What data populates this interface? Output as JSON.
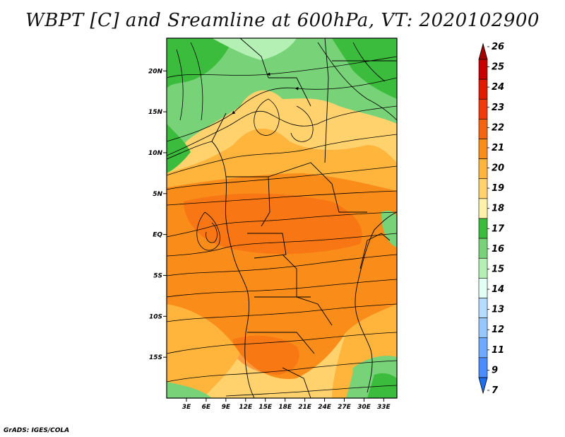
{
  "title": "WBPT [C] and Sreamline at 600hPa, VT: 2020102900",
  "credit": "GrADS: IGES/COLA",
  "map": {
    "variable": "Wet-bulb potential temperature (WBPT) with streamlines",
    "level": "600hPa",
    "lon_range": [
      0,
      35
    ],
    "lat_range": [
      -20,
      24
    ],
    "lat_ticks": [
      {
        "value": 20,
        "label": "20N"
      },
      {
        "value": 15,
        "label": "15N"
      },
      {
        "value": 10,
        "label": "10N"
      },
      {
        "value": 5,
        "label": "5N"
      },
      {
        "value": 0,
        "label": "EQ"
      },
      {
        "value": -5,
        "label": "5S"
      },
      {
        "value": -10,
        "label": "10S"
      },
      {
        "value": -15,
        "label": "15S"
      }
    ],
    "lon_ticks": [
      {
        "value": 3,
        "label": "3E"
      },
      {
        "value": 6,
        "label": "6E"
      },
      {
        "value": 9,
        "label": "9E"
      },
      {
        "value": 12,
        "label": "12E"
      },
      {
        "value": 15,
        "label": "15E"
      },
      {
        "value": 18,
        "label": "18E"
      },
      {
        "value": 21,
        "label": "21E"
      },
      {
        "value": 24,
        "label": "24E"
      },
      {
        "value": 27,
        "label": "27E"
      },
      {
        "value": 30,
        "label": "30E"
      },
      {
        "value": 33,
        "label": "33E"
      }
    ]
  },
  "colorbar": {
    "levels": [
      {
        "label": "26",
        "color": "#a50000"
      },
      {
        "label": "25",
        "color": "#c80000"
      },
      {
        "label": "24",
        "color": "#e11a00"
      },
      {
        "label": "23",
        "color": "#f03c0a"
      },
      {
        "label": "22",
        "color": "#f5640f"
      },
      {
        "label": "21",
        "color": "#fa8c19"
      },
      {
        "label": "20",
        "color": "#ffb43c"
      },
      {
        "label": "19",
        "color": "#ffd26e"
      },
      {
        "label": "18",
        "color": "#fff0aa"
      },
      {
        "label": "17",
        "color": "#3cbc3c"
      },
      {
        "label": "16",
        "color": "#78d278"
      },
      {
        "label": "15",
        "color": "#b4f0b4"
      },
      {
        "label": "14",
        "color": "#e1fff5"
      },
      {
        "label": "13",
        "color": "#b4dcff"
      },
      {
        "label": "12",
        "color": "#96c8ff"
      },
      {
        "label": "11",
        "color": "#6eaaff"
      },
      {
        "label": "9",
        "color": "#4b8cff"
      },
      {
        "label": "7",
        "color": "#1e6ef0"
      }
    ]
  }
}
